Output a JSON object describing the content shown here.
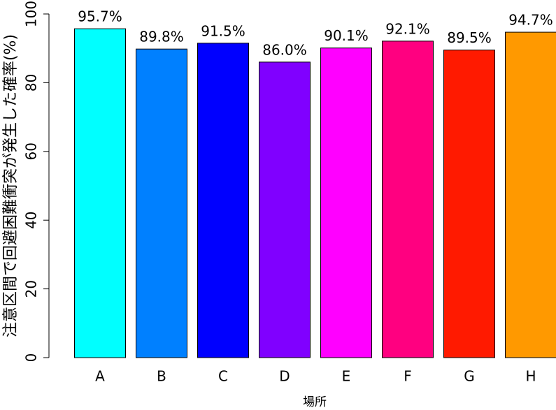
{
  "chart_data": {
    "type": "bar",
    "categories": [
      "A",
      "B",
      "C",
      "D",
      "E",
      "F",
      "G",
      "H"
    ],
    "values": [
      95.7,
      89.8,
      91.5,
      86.0,
      90.1,
      92.1,
      89.5,
      94.7
    ],
    "value_labels": [
      "95.7%",
      "89.8%",
      "91.5%",
      "86.0%",
      "90.1%",
      "92.1%",
      "89.5%",
      "94.7%"
    ],
    "colors": [
      "#00ffff",
      "#0080ff",
      "#0000ff",
      "#8000ff",
      "#ff00ff",
      "#ff0080",
      "#ff1a00",
      "#ff9900"
    ],
    "xlabel": "場所",
    "ylabel": "注意区間で回避困難衝突が発生した確率(%)",
    "ylim": [
      0,
      100
    ],
    "yticks": [
      0,
      20,
      40,
      60,
      80,
      100
    ]
  }
}
